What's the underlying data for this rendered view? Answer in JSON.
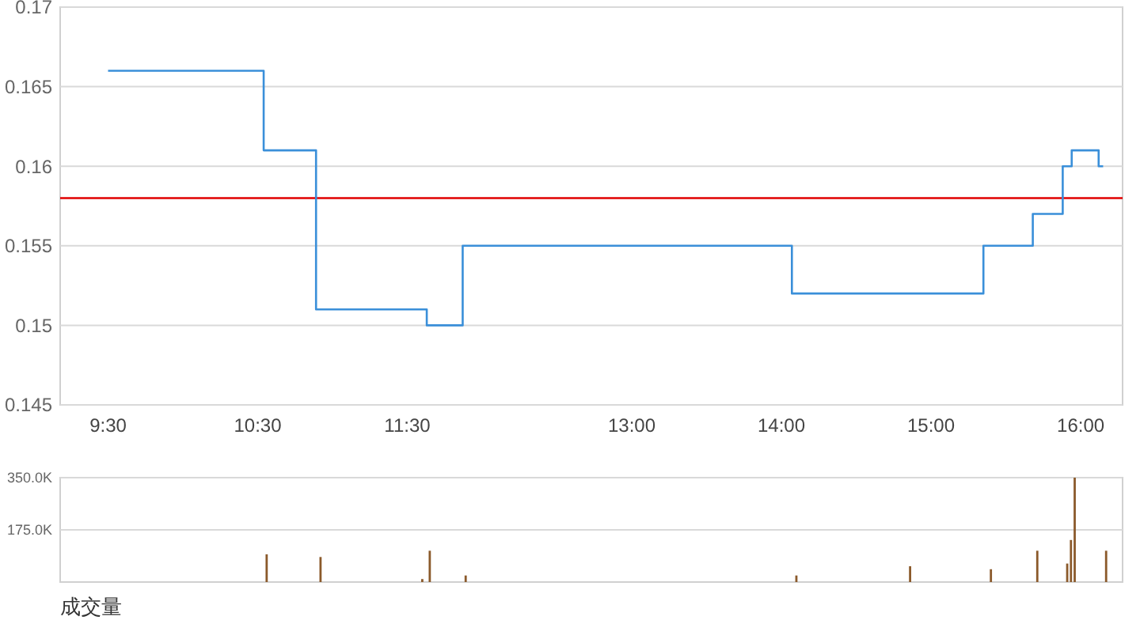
{
  "chart_data": [
    {
      "type": "step",
      "xlim": [
        9.18,
        16.28
      ],
      "ylim": [
        0.145,
        0.17
      ],
      "grid": "y",
      "xticks": [
        {
          "value": 9.5,
          "label": "9:30"
        },
        {
          "value": 10.5,
          "label": "10:30"
        },
        {
          "value": 11.5,
          "label": "11:30"
        },
        {
          "value": 13,
          "label": "13:00"
        },
        {
          "value": 14,
          "label": "14:00"
        },
        {
          "value": 15,
          "label": "15:00"
        },
        {
          "value": 16,
          "label": "16:00"
        }
      ],
      "yticks": [
        0.145,
        0.15,
        0.155,
        0.16,
        0.165,
        0.17
      ],
      "series": [
        {
          "color": "#3a8fd9",
          "x": [
            9.5,
            10.54,
            10.89,
            11.63,
            11.87,
            14.07,
            15.35,
            15.68,
            15.88,
            15.94,
            16.12,
            16.15
          ],
          "values": [
            0.166,
            0.161,
            0.151,
            0.15,
            0.155,
            0.152,
            0.155,
            0.157,
            0.16,
            0.161,
            0.16,
            0.16
          ]
        }
      ],
      "ref_lines": [
        {
          "axis": "y",
          "value": 0.158,
          "color": "#e00000"
        }
      ]
    },
    {
      "type": "bar",
      "xlim": [
        9.18,
        16.28
      ],
      "ylim": [
        0,
        350000
      ],
      "grid": "y",
      "tick_labels": "y",
      "xlabel": "成交量",
      "yticks": [
        {
          "value": 175000,
          "label": "175.0K"
        },
        {
          "value": 350000,
          "label": "350.0K"
        }
      ],
      "x": [
        10.56,
        10.92,
        11.6,
        11.65,
        11.89,
        14.1,
        14.86,
        15.4,
        15.71,
        15.91,
        15.935,
        15.96,
        16.17
      ],
      "values": [
        93000,
        84000,
        10000,
        105000,
        22000,
        22000,
        53000,
        43000,
        105000,
        62000,
        141000,
        350000,
        105000
      ],
      "color": "#8b5a2b"
    }
  ]
}
